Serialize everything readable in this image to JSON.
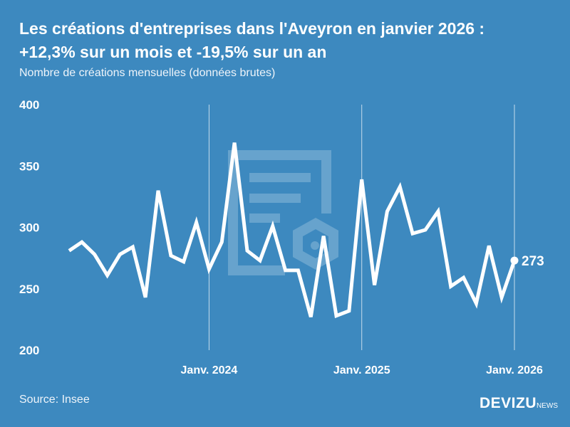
{
  "title_line1": "Les créations d'entreprises dans l'Aveyron en janvier 2026 :",
  "title_line2": "+12,3% sur un mois et -19,5% sur un an",
  "subtitle": "Nombre de créations mensuelles (données brutes)",
  "source": "Source: Insee",
  "logo": {
    "main": "DEVIZU",
    "suffix": "NEWS"
  },
  "colors": {
    "background": "#3d89bf",
    "line": "#ffffff"
  },
  "chart_data": {
    "type": "line",
    "x": [
      "2023-02",
      "2023-03",
      "2023-04",
      "2023-05",
      "2023-06",
      "2023-07",
      "2023-08",
      "2023-09",
      "2023-10",
      "2023-11",
      "2023-12",
      "2024-01",
      "2024-02",
      "2024-03",
      "2024-04",
      "2024-05",
      "2024-06",
      "2024-07",
      "2024-08",
      "2024-09",
      "2024-10",
      "2024-11",
      "2024-12",
      "2025-01",
      "2025-02",
      "2025-03",
      "2025-04",
      "2025-05",
      "2025-06",
      "2025-07",
      "2025-08",
      "2025-09",
      "2025-10",
      "2025-11",
      "2025-12",
      "2026-01"
    ],
    "values": [
      281,
      288,
      278,
      261,
      278,
      284,
      243,
      330,
      277,
      272,
      304,
      266,
      288,
      369,
      281,
      273,
      301,
      265,
      265,
      227,
      293,
      228,
      232,
      339,
      253,
      313,
      333,
      295,
      298,
      313,
      252,
      259,
      238,
      285,
      243,
      273
    ],
    "ylim": [
      200,
      400
    ],
    "yticks": [
      200,
      250,
      300,
      350,
      400
    ],
    "xticks": [
      {
        "x": "2024-01",
        "label": "Janv. 2024"
      },
      {
        "x": "2025-01",
        "label": "Janv. 2025"
      },
      {
        "x": "2026-01",
        "label": "Janv. 2026"
      }
    ],
    "last_value_label": "273",
    "grid": "vertical lines at January",
    "legend": "none"
  }
}
